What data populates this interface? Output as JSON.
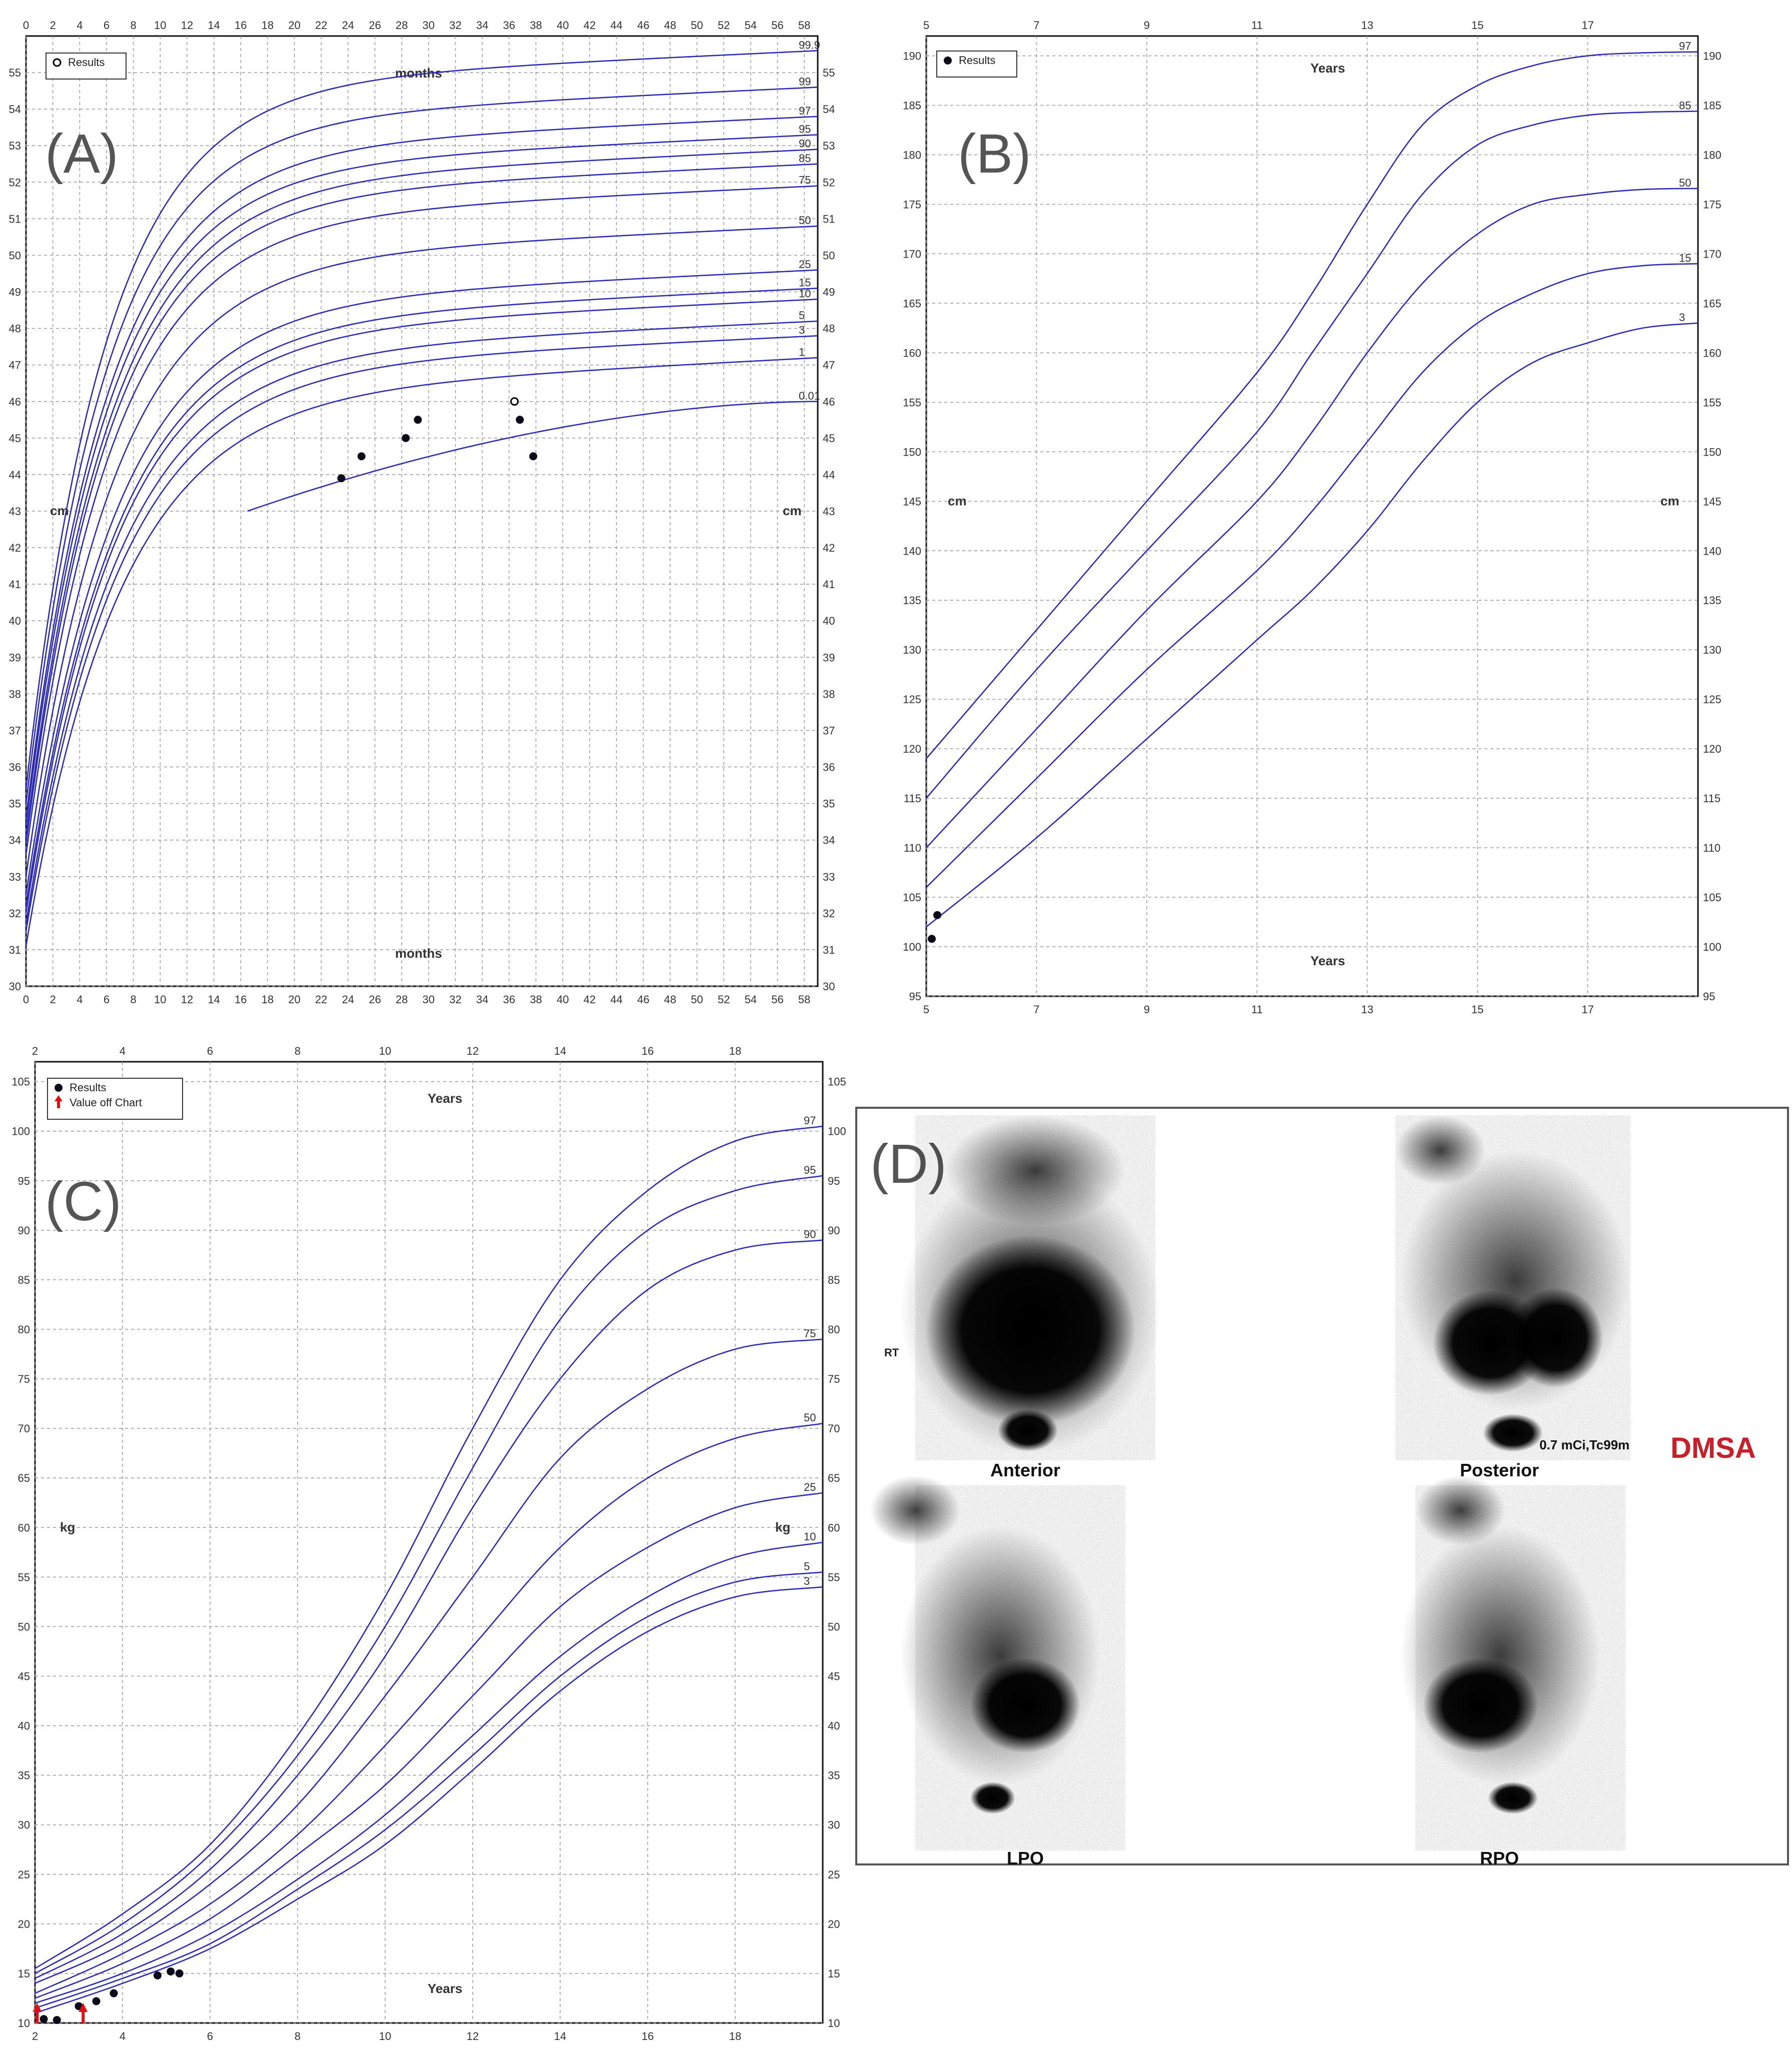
{
  "chart_data": [
    {
      "panel": "A",
      "panel_label": "(A)",
      "type": "line",
      "x_unit_label": "months",
      "y_unit_label": "cm",
      "xlim": [
        0,
        59
      ],
      "ylim": [
        30,
        56
      ],
      "x_ticks": [
        0,
        2,
        4,
        6,
        8,
        10,
        12,
        14,
        16,
        18,
        20,
        22,
        24,
        26,
        28,
        30,
        32,
        34,
        36,
        38,
        40,
        42,
        44,
        46,
        48,
        50,
        52,
        54,
        56,
        58
      ],
      "y_ticks": [
        30,
        31,
        32,
        33,
        34,
        35,
        36,
        37,
        38,
        39,
        40,
        41,
        42,
        43,
        44,
        45,
        46,
        47,
        48,
        49,
        50,
        51,
        52,
        53,
        54,
        55
      ],
      "grid": true,
      "legend": {
        "position": "top-left",
        "entries": [
          {
            "label": "Results",
            "marker": "open-circle"
          }
        ]
      },
      "line_color": "#2b2bb8",
      "series": [
        {
          "name": "99.9",
          "a": 35.4,
          "b": 54.6,
          "k": 6.0,
          "end": 55.6
        },
        {
          "name": "99",
          "a": 35.0,
          "b": 53.6,
          "k": 6.0,
          "end": 54.6
        },
        {
          "name": "97",
          "a": 34.6,
          "b": 52.8,
          "k": 6.1,
          "end": 53.8
        },
        {
          "name": "95",
          "a": 34.4,
          "b": 52.3,
          "k": 6.1,
          "end": 53.3
        },
        {
          "name": "90",
          "a": 34.1,
          "b": 51.9,
          "k": 6.2,
          "end": 52.9
        },
        {
          "name": "85",
          "a": 33.9,
          "b": 51.5,
          "k": 6.2,
          "end": 52.5
        },
        {
          "name": "75",
          "a": 33.6,
          "b": 50.9,
          "k": 6.3,
          "end": 51.9
        },
        {
          "name": "50",
          "a": 33.0,
          "b": 49.8,
          "k": 6.4,
          "end": 50.8
        },
        {
          "name": "25",
          "a": 32.5,
          "b": 48.6,
          "k": 6.5,
          "end": 49.6
        },
        {
          "name": "15",
          "a": 32.2,
          "b": 48.1,
          "k": 6.6,
          "end": 49.1
        },
        {
          "name": "10",
          "a": 32.0,
          "b": 47.8,
          "k": 6.6,
          "end": 48.8
        },
        {
          "name": "5",
          "a": 31.7,
          "b": 47.2,
          "k": 6.7,
          "end": 48.2
        },
        {
          "name": "3",
          "a": 31.5,
          "b": 46.8,
          "k": 6.8,
          "end": 47.8
        },
        {
          "name": "1",
          "a": 31.1,
          "b": 46.1,
          "k": 6.9,
          "end": 47.2
        },
        {
          "name": "0.01",
          "start_x": 16.5,
          "start_y": 43.0,
          "end": 46.0
        }
      ],
      "results": [
        {
          "x": 23.5,
          "y": 43.9,
          "marker": "filled"
        },
        {
          "x": 25.0,
          "y": 44.5,
          "marker": "filled"
        },
        {
          "x": 28.3,
          "y": 45.0,
          "marker": "filled"
        },
        {
          "x": 29.2,
          "y": 45.5,
          "marker": "filled"
        },
        {
          "x": 36.4,
          "y": 46.0,
          "marker": "open"
        },
        {
          "x": 36.8,
          "y": 45.5,
          "marker": "filled"
        },
        {
          "x": 37.8,
          "y": 44.5,
          "marker": "filled"
        }
      ]
    },
    {
      "panel": "B",
      "panel_label": "(B)",
      "type": "line",
      "x_unit_label": "Years",
      "y_unit_label": "cm",
      "xlim": [
        5,
        19
      ],
      "ylim": [
        95,
        192
      ],
      "x_ticks": [
        5,
        7,
        9,
        11,
        13,
        15,
        17
      ],
      "y_ticks": [
        95,
        100,
        105,
        110,
        115,
        120,
        125,
        130,
        135,
        140,
        145,
        150,
        155,
        160,
        165,
        170,
        175,
        180,
        185,
        190
      ],
      "grid": true,
      "legend": {
        "position": "top-left",
        "entries": [
          {
            "label": "Results",
            "marker": "filled-circle"
          }
        ]
      },
      "line_color": "#2b2bb8",
      "series": [
        {
          "name": "97",
          "x": [
            5,
            7,
            9,
            11,
            12,
            13,
            14,
            15,
            16,
            17,
            18,
            19
          ],
          "y": [
            119,
            132,
            145,
            158,
            166,
            175,
            183,
            187,
            189,
            190,
            190.3,
            190.4
          ]
        },
        {
          "name": "85",
          "x": [
            5,
            7,
            9,
            11,
            12,
            13,
            14,
            15,
            16,
            17,
            18,
            19
          ],
          "y": [
            115,
            128,
            140,
            152,
            160,
            168,
            176,
            181,
            183,
            184,
            184.3,
            184.4
          ]
        },
        {
          "name": "50",
          "x": [
            5,
            7,
            9,
            11,
            12,
            13,
            14,
            15,
            16,
            17,
            18,
            19
          ],
          "y": [
            110,
            122,
            134,
            145,
            152,
            160,
            167,
            172,
            175,
            176,
            176.5,
            176.6
          ]
        },
        {
          "name": "15",
          "x": [
            5,
            7,
            9,
            11,
            12,
            13,
            14,
            15,
            16,
            17,
            18,
            19
          ],
          "y": [
            106,
            117,
            128,
            138,
            144,
            151,
            158,
            163,
            166,
            168,
            168.8,
            169
          ]
        },
        {
          "name": "3",
          "x": [
            5,
            7,
            9,
            11,
            12,
            13,
            14,
            15,
            16,
            17,
            18,
            19
          ],
          "y": [
            102,
            111,
            121,
            131,
            136,
            142,
            149,
            155,
            159,
            161,
            162.5,
            163
          ]
        }
      ],
      "results": [
        {
          "x": 5.1,
          "y": 100.8,
          "marker": "filled"
        },
        {
          "x": 5.2,
          "y": 103.2,
          "marker": "filled"
        }
      ]
    },
    {
      "panel": "C",
      "panel_label": "(C)",
      "type": "line",
      "x_unit_label": "Years",
      "y_unit_label": "kg",
      "xlim": [
        2,
        20
      ],
      "ylim": [
        10,
        107
      ],
      "x_ticks": [
        2,
        4,
        6,
        8,
        10,
        12,
        14,
        16,
        18
      ],
      "y_ticks": [
        10,
        15,
        20,
        25,
        30,
        35,
        40,
        45,
        50,
        55,
        60,
        65,
        70,
        75,
        80,
        85,
        90,
        95,
        100,
        105
      ],
      "grid": true,
      "legend": {
        "position": "top-left",
        "entries": [
          {
            "label": "Results",
            "marker": "filled-circle"
          },
          {
            "label": "Value off Chart",
            "marker": "red-arrow"
          }
        ]
      },
      "line_color": "#2b2bb8",
      "series": [
        {
          "name": "97",
          "x": [
            2,
            4,
            6,
            8,
            10,
            12,
            14,
            16,
            18,
            20
          ],
          "y": [
            15.5,
            21,
            28,
            39,
            53,
            70,
            85,
            94,
            99,
            100.5
          ]
        },
        {
          "name": "95",
          "x": [
            2,
            4,
            6,
            8,
            10,
            12,
            14,
            16,
            18,
            20
          ],
          "y": [
            15,
            20,
            27,
            37,
            50,
            66,
            81,
            90,
            94,
            95.5
          ]
        },
        {
          "name": "90",
          "x": [
            2,
            4,
            6,
            8,
            10,
            12,
            14,
            16,
            18,
            20
          ],
          "y": [
            14.5,
            19,
            25.5,
            35,
            47,
            62,
            75,
            84,
            88,
            89
          ]
        },
        {
          "name": "75",
          "x": [
            2,
            4,
            6,
            8,
            10,
            12,
            14,
            16,
            18,
            20
          ],
          "y": [
            14,
            18,
            24,
            32,
            43,
            55,
            67,
            74,
            78,
            79
          ]
        },
        {
          "name": "50",
          "x": [
            2,
            4,
            6,
            8,
            10,
            12,
            14,
            16,
            18,
            20
          ],
          "y": [
            13,
            17,
            22,
            29,
            38,
            48,
            58,
            65,
            69,
            70.5
          ]
        },
        {
          "name": "25",
          "x": [
            2,
            4,
            6,
            8,
            10,
            12,
            14,
            16,
            18,
            20
          ],
          "y": [
            12.5,
            16,
            20.5,
            27,
            34,
            43,
            52,
            58,
            62,
            63.5
          ]
        },
        {
          "name": "10",
          "x": [
            2,
            4,
            6,
            8,
            10,
            12,
            14,
            16,
            18,
            20
          ],
          "y": [
            12,
            15,
            19,
            24.5,
            31,
            39,
            47,
            53,
            57,
            58.5
          ]
        },
        {
          "name": "5",
          "x": [
            2,
            4,
            6,
            8,
            10,
            12,
            14,
            16,
            18,
            20
          ],
          "y": [
            11.5,
            14.5,
            18,
            23.5,
            29.5,
            37,
            45,
            51,
            54.5,
            55.5
          ]
        },
        {
          "name": "3",
          "x": [
            2,
            4,
            6,
            8,
            10,
            12,
            14,
            16,
            18,
            20
          ],
          "y": [
            11,
            14,
            17.5,
            22.5,
            28,
            35.5,
            43.5,
            49.5,
            53,
            54
          ]
        }
      ],
      "results": [
        {
          "x": 2.2,
          "y": 10.4,
          "marker": "filled"
        },
        {
          "x": 2.5,
          "y": 10.3,
          "marker": "filled"
        },
        {
          "x": 3.0,
          "y": 11.7,
          "marker": "filled"
        },
        {
          "x": 3.4,
          "y": 12.2,
          "marker": "filled"
        },
        {
          "x": 3.8,
          "y": 13.0,
          "marker": "filled"
        },
        {
          "x": 4.8,
          "y": 14.8,
          "marker": "filled"
        },
        {
          "x": 5.1,
          "y": 15.2,
          "marker": "filled"
        },
        {
          "x": 5.3,
          "y": 15.0,
          "marker": "filled"
        }
      ],
      "off_chart": [
        {
          "x": 2.05
        },
        {
          "x": 3.1
        }
      ]
    }
  ],
  "scan": {
    "panel_label": "(D)",
    "side_marker": "RT",
    "dose_text": "0.7 mCi,Tc99m",
    "agent_text": "DMSA",
    "views": [
      "Anterior",
      "Posterior",
      "LPO",
      "RPO"
    ]
  }
}
